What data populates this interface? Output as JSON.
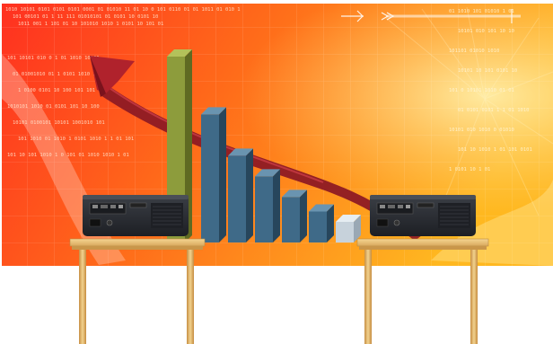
{
  "scene": {
    "description_label": "",
    "colors": {
      "screen_left": "#ff3a1a",
      "screen_mid": "#ff7a1a",
      "screen_right": "#ffb21f",
      "bar_green": "#8a9a3a",
      "bar_blue": "#3f6b8a",
      "bar_light": "#c9d4dd",
      "arrow_red": "#b0202a",
      "projector_body": "#2a2d33",
      "table_wood": "#e8c27a",
      "table_wood_dark": "#c9964a"
    },
    "binary_text": [
      "1010 10101 0101 0101 0101 0001 01 01010 11 01 10 0 101 0110 01 01 1011 01 010 1",
      "101 00101 01 1 11 111 01010101 01 0101 10 0101 10",
      "1011 001 1 101 01 10 101010 1010 1 0101 10 101 01",
      "101 10101 010 0 1 01 1010 10101",
      "01 01001010 01 1 0101 1010 10101",
      "1 0100 0101 10 100 101 101",
      "1010101 1010 01 0101 101 10 100",
      "10101 0100101 10101 1001010 101",
      "101 1010 01 1010 1 0101 1010 1 1 01 101",
      "101 10 101 1010 1 0 101 01 1010 1010 1 01"
    ],
    "binary_text_right": [
      "01 1010 101 01010 1 01",
      "10101 010 101 10 10",
      "101101 01010 1010",
      "10101 10 101 0101 10",
      "101 0 10101 1010 01 01",
      "01 0101 0101 1 1 01 1010",
      "10101 010 1010 0 01010",
      "101 10 1010 1 01 101 0101",
      "1 0101 10 1 01"
    ],
    "bar_values": [
      0.9,
      0.62,
      0.42,
      0.32,
      0.22,
      0.15,
      0.1
    ],
    "projectors": [
      "left-projector",
      "right-projector"
    ]
  }
}
